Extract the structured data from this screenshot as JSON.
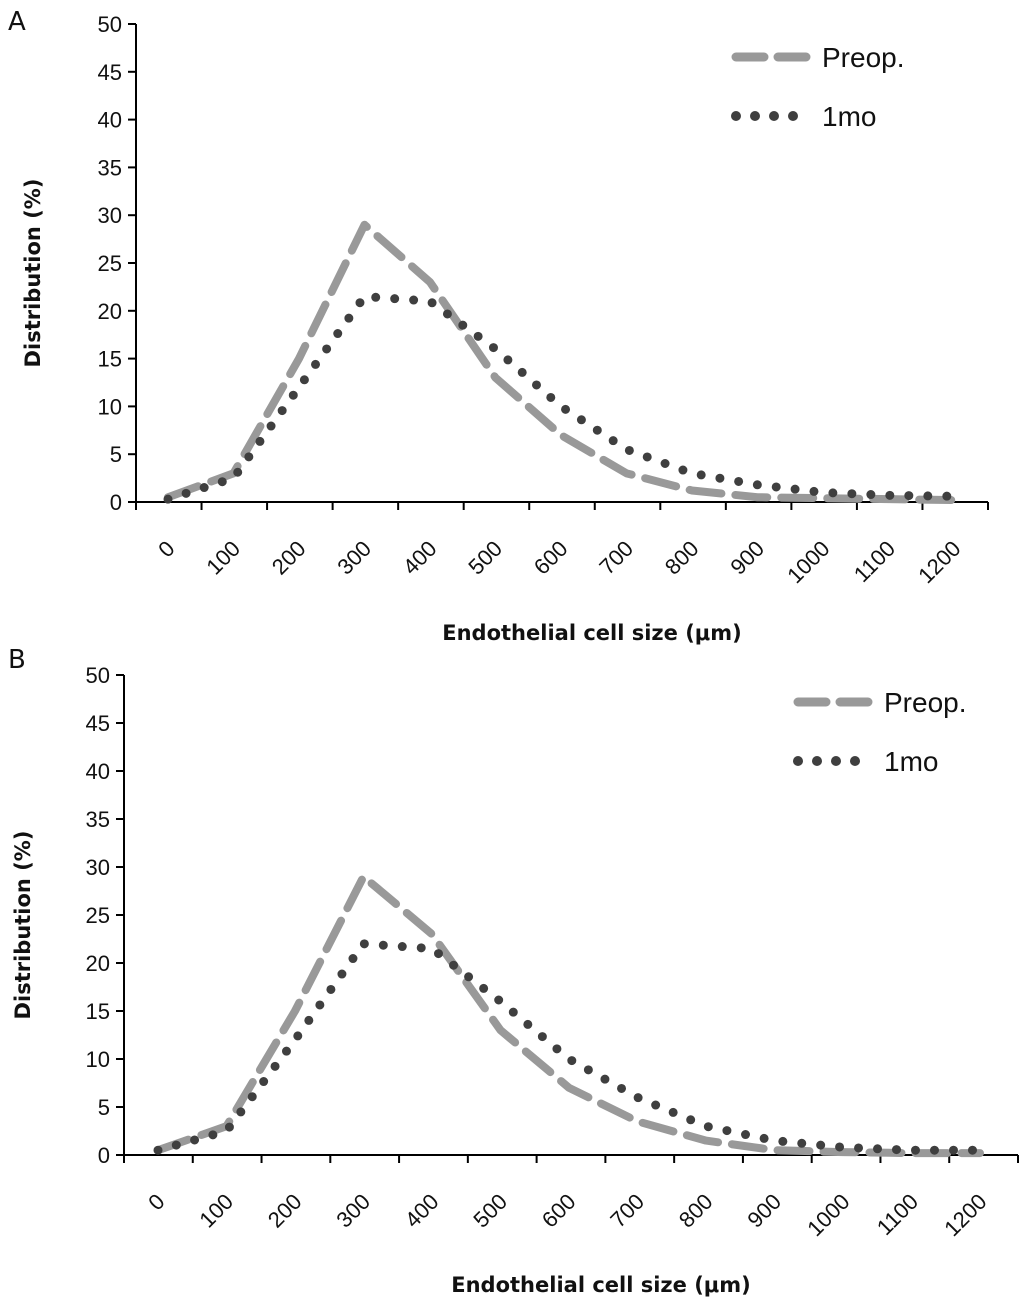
{
  "chart_data": [
    {
      "panel_label": "A",
      "type": "line",
      "title": "",
      "xlabel": "Endothelial cell size (μm)",
      "ylabel": "Distribution (%)",
      "ylim": [
        0,
        50
      ],
      "yticks": [
        "0",
        "5",
        "10",
        "15",
        "20",
        "25",
        "30",
        "35",
        "40",
        "45",
        "50"
      ],
      "categories": [
        "0",
        "100",
        "200",
        "300",
        "400",
        "500",
        "600",
        "700",
        "800",
        "900",
        "1000",
        "1100",
        "1200"
      ],
      "legend_position": "top-right",
      "series": [
        {
          "name": "Preop.",
          "style": "dashed",
          "color": "#999999",
          "values": [
            0.5,
            3,
            15,
            29,
            23,
            13,
            7,
            3,
            1.2,
            0.5,
            0.4,
            0.3,
            0.2
          ]
        },
        {
          "name": "1mo",
          "style": "dotted",
          "color": "#3f3f3f",
          "values": [
            0.3,
            2.5,
            12,
            21.5,
            21,
            16,
            10,
            5.5,
            3,
            1.8,
            1,
            0.7,
            0.6
          ]
        }
      ]
    },
    {
      "panel_label": "B",
      "type": "line",
      "title": "",
      "xlabel": "Endothelial cell size (μm)",
      "ylabel": "Distribution (%)",
      "ylim": [
        0,
        50
      ],
      "yticks": [
        "0",
        "5",
        "10",
        "15",
        "20",
        "25",
        "30",
        "35",
        "40",
        "45",
        "50"
      ],
      "categories": [
        "0",
        "100",
        "200",
        "300",
        "400",
        "500",
        "600",
        "700",
        "800",
        "900",
        "1000",
        "1100",
        "1200"
      ],
      "legend_position": "top-right",
      "series": [
        {
          "name": "Preop.",
          "style": "dashed",
          "color": "#999999",
          "values": [
            0.5,
            3,
            15,
            29,
            23,
            13,
            7,
            3.5,
            1.5,
            0.5,
            0.3,
            0.2,
            0.2
          ]
        },
        {
          "name": "1mo",
          "style": "dotted",
          "color": "#3f3f3f",
          "values": [
            0.5,
            2.5,
            12,
            22,
            21.5,
            16,
            10,
            6,
            3,
            1.5,
            0.8,
            0.5,
            0.5
          ]
        }
      ]
    }
  ]
}
